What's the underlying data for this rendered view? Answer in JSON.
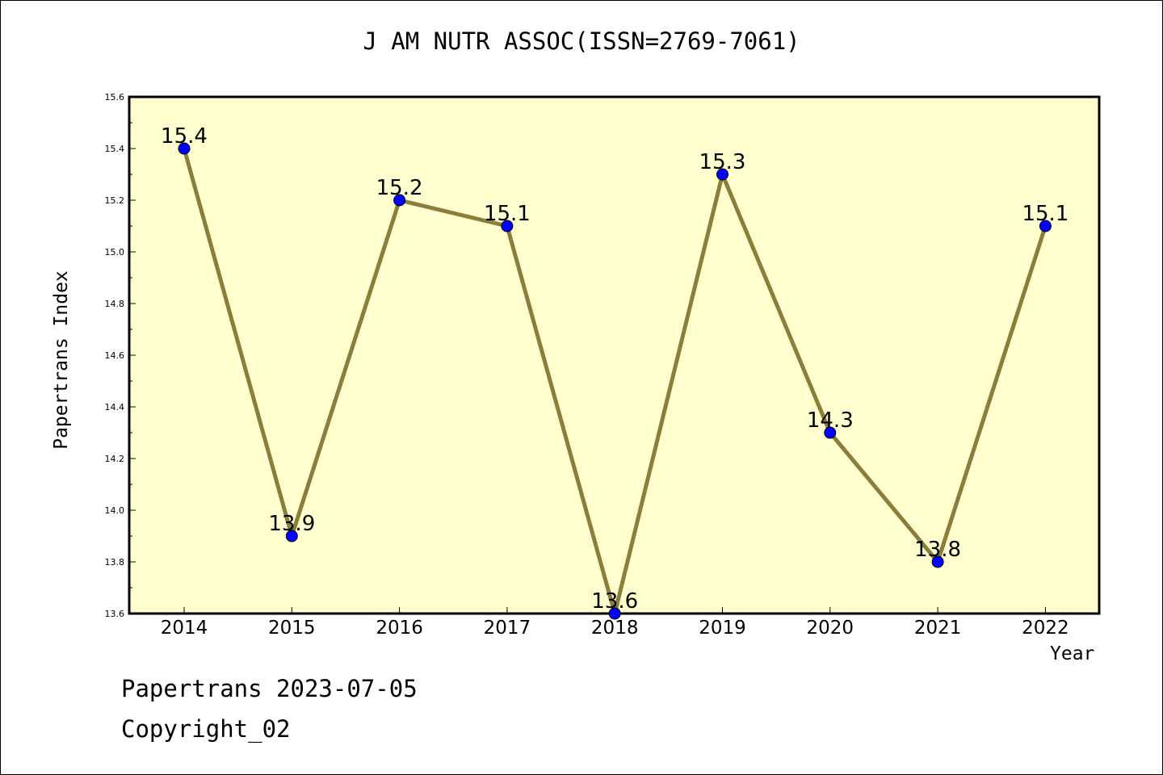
{
  "chart_data": {
    "type": "line",
    "title": "J AM NUTR ASSOC(ISSN=2769-7061)",
    "xlabel": "Year",
    "ylabel": "Papertrans Index",
    "categories": [
      "2014",
      "2015",
      "2016",
      "2017",
      "2018",
      "2019",
      "2020",
      "2021",
      "2022"
    ],
    "values": [
      15.4,
      13.9,
      15.2,
      15.1,
      13.6,
      15.3,
      14.3,
      13.8,
      15.1
    ],
    "data_labels": [
      "15.4",
      "13.9",
      "15.2",
      "15.1",
      "13.6",
      "15.3",
      "14.3",
      "13.8",
      "15.1"
    ],
    "ylim": [
      13.6,
      15.6
    ],
    "y_ticks": [
      "13.6",
      "13.8",
      "14.0",
      "14.2",
      "14.4",
      "14.6",
      "14.8",
      "15.0",
      "15.2",
      "15.4",
      "15.6"
    ],
    "grid": false,
    "colors": {
      "plot_background": "#ffffd0",
      "line": "#8b7d3a",
      "marker": "#0000ff"
    }
  },
  "footer": {
    "line1": "Papertrans 2023-07-05",
    "line2": "Copyright_02"
  }
}
